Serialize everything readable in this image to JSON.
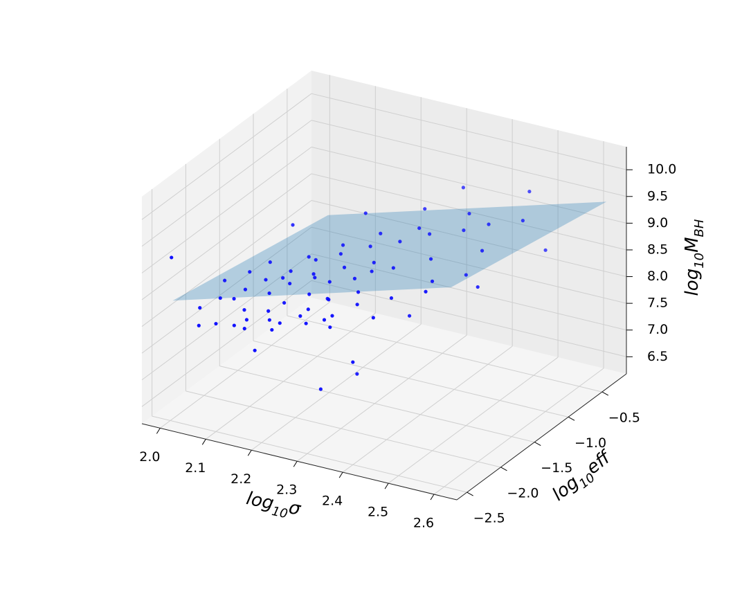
{
  "chart_data": {
    "type": "scatter3d",
    "xlabel": [
      "log",
      "10",
      "σ"
    ],
    "ylabel": [
      "log",
      "10",
      "eff"
    ],
    "zlabel": [
      "log",
      "10",
      "M",
      "BH"
    ],
    "xlim": [
      1.96,
      2.65
    ],
    "ylim": [
      -2.65,
      -0.14
    ],
    "zlim": [
      6.18,
      10.43
    ],
    "xticks": [
      {
        "value": 2,
        "label": "2.0"
      },
      2.1,
      2.2,
      2.3,
      2.4,
      2.5,
      2.6
    ],
    "yticks": [
      {
        "value": -2.5,
        "label": "−2.5"
      },
      {
        "value": -2,
        "label": "−2.0"
      },
      {
        "value": -1.5,
        "label": "−1.5"
      },
      {
        "value": -1,
        "label": "−1.0"
      },
      {
        "value": -0.5,
        "label": "−0.5"
      }
    ],
    "zticks": [
      6.5,
      {
        "value": 7,
        "label": "7.0"
      },
      7.5,
      {
        "value": 8,
        "label": "8.0"
      },
      8.5,
      {
        "value": 9,
        "label": "9.0"
      },
      9.5,
      {
        "value": 10,
        "label": "10.0"
      }
    ],
    "grid": true,
    "points": {
      "color": "#0000ff",
      "x": [
        2.05,
        2.08,
        2.1,
        2.12,
        2.14,
        2.15,
        2.16,
        2.18,
        2.19,
        2.2,
        2.21,
        2.22,
        2.23,
        2.24,
        2.25,
        2.26,
        2.27,
        2.28,
        2.29,
        2.3,
        2.31,
        2.32,
        2.33,
        2.34,
        2.35,
        2.36,
        2.37,
        2.38,
        2.4,
        2.42,
        2.44,
        2.46,
        2.48,
        2.5,
        2.52,
        2.55,
        2.58,
        2.1,
        2.07,
        2.13,
        2.17,
        2.2,
        2.23,
        2.26,
        2.29,
        2.32,
        2.35,
        2.39,
        2.43,
        2.47,
        2.06,
        2.11,
        2.14,
        2.18,
        2.21,
        2.24,
        2.27,
        2.3,
        2.33,
        2.36,
        2.01,
        2.3,
        2.35,
        2.6,
        2.55,
        2.4,
        2.45,
        2.5,
        2.2,
        2.28,
        2.15,
        2.38,
        2.42,
        2.53,
        2.57
      ],
      "y": [
        -2.4,
        -2.3,
        -2.5,
        -2.2,
        -2.35,
        -2.1,
        -2.45,
        -2.25,
        -2.0,
        -2.4,
        -2.15,
        -2.3,
        -1.9,
        -2.5,
        -2.05,
        -2.2,
        -1.8,
        -2.35,
        -2.1,
        -1.95,
        -2.25,
        -1.7,
        -2.0,
        -2.4,
        -1.85,
        -2.15,
        -1.6,
        -2.3,
        -1.9,
        -1.5,
        -2.2,
        -1.75,
        -1.4,
        -2.0,
        -1.3,
        -1.6,
        -1.2,
        -2.0,
        -2.55,
        -1.9,
        -2.55,
        -1.8,
        -2.55,
        -1.7,
        -2.45,
        -1.55,
        -2.5,
        -1.45,
        -2.4,
        -1.25,
        -2.1,
        -2.3,
        -2.5,
        -2.05,
        -2.45,
        -2.0,
        -2.4,
        -2.2,
        -2.45,
        -1.95,
        -2.55,
        -2.3,
        -2.1,
        -1.0,
        -0.9,
        -2.5,
        -2.0,
        -1.5,
        -2.6,
        -1.5,
        -1.7,
        -1.3,
        -1.0,
        -2.3,
        -1.8
      ],
      "z": [
        8.3,
        8.45,
        8.2,
        8.6,
        8.4,
        8.75,
        8.35,
        8.7,
        8.9,
        8.55,
        8.85,
        8.65,
        9.1,
        8.5,
        8.95,
        8.8,
        9.2,
        8.7,
        9.0,
        9.15,
        8.85,
        9.35,
        9.05,
        8.75,
        9.25,
        9.0,
        9.45,
        8.95,
        9.3,
        9.6,
        9.1,
        9.45,
        9.7,
        9.35,
        9.8,
        9.65,
        9.9,
        8.7,
        8.15,
        8.85,
        8.3,
        9.0,
        8.4,
        9.25,
        8.55,
        9.45,
        8.65,
        9.6,
        8.9,
        9.85,
        8.55,
        8.5,
        8.25,
        8.8,
        8.45,
        8.95,
        8.6,
        8.8,
        8.7,
        9.2,
        9.3,
        7.2,
        7.4,
        9.2,
        10.1,
        8.1,
        8.6,
        9.0,
        8.0,
        9.7,
        9.4,
        9.8,
        10.0,
        9.5,
        9.2
      ]
    },
    "surface": {
      "color": "#1f77b4",
      "x": [
        2.02,
        2.63
      ],
      "y": [
        -2.6,
        -0.3
      ],
      "z": [
        [
          8.56,
          8.0
        ],
        [
          10.07,
          9.51
        ]
      ]
    }
  }
}
